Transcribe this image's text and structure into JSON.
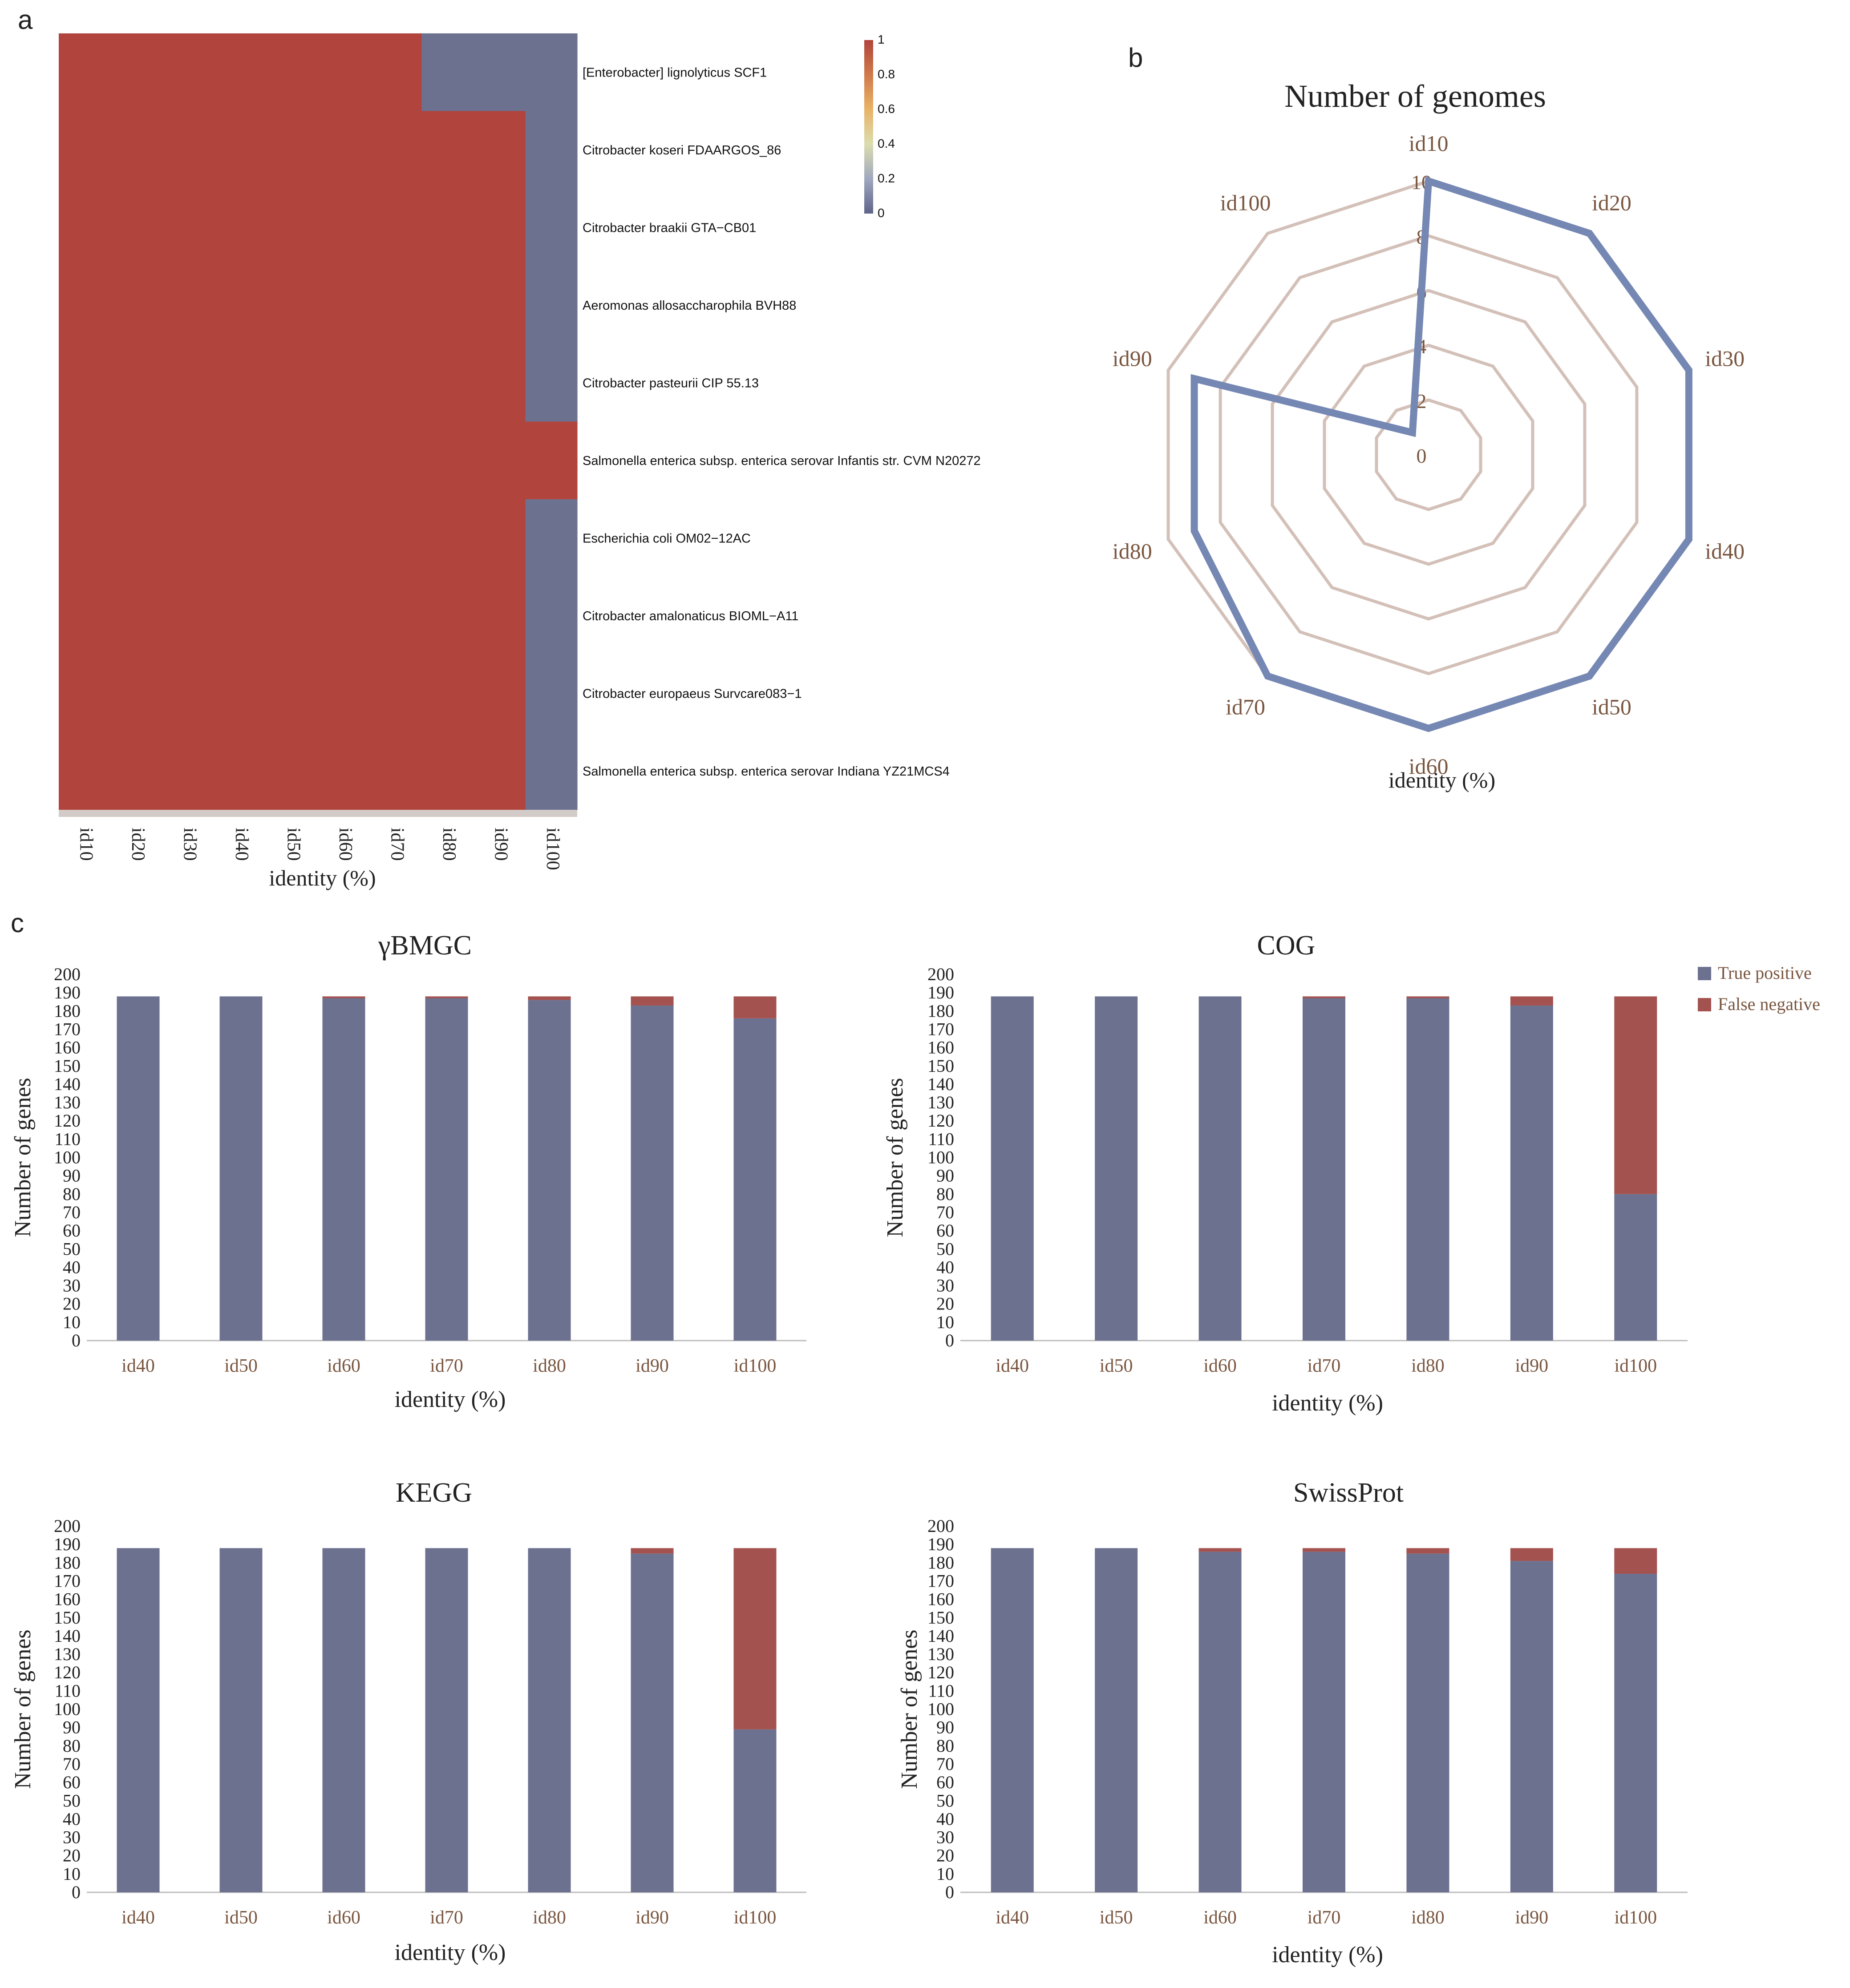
{
  "panel_labels": {
    "a": "a",
    "b": "b",
    "c": "c"
  },
  "colors": {
    "positive": "#6D7190",
    "negative": "#A3524F",
    "heat_high": "#B1443C",
    "heat_low": "#6D7190",
    "radar_grid": "#D3C0B8",
    "radar_line": "#7587B3",
    "radar_text": "#7A5640",
    "axis_text": "#7A5640",
    "sep": "#D3CBC8"
  },
  "chart_data": [
    {
      "type": "heatmap",
      "panel": "a",
      "xlabel": "identity (%)",
      "x": [
        "id10",
        "id20",
        "id30",
        "id40",
        "id50",
        "id60",
        "id70",
        "id80",
        "id90",
        "id100"
      ],
      "rows": [
        "[Enterobacter] lignolyticus SCF1",
        "Citrobacter koseri FDAARGOS_86",
        "Citrobacter braakii GTA−CB01",
        "Aeromonas allosaccharophila BVH88",
        "Citrobacter pasteurii CIP 55.13",
        "Salmonella enterica subsp. enterica serovar Infantis str. CVM N20272",
        "Escherichia coli OM02−12AC",
        "Citrobacter amalonaticus BIOML−A11",
        "Citrobacter europaeus Survcare083−1",
        "Salmonella enterica subsp. enterica serovar Indiana YZ21MCS4"
      ],
      "values": [
        [
          1,
          1,
          1,
          1,
          1,
          1,
          1,
          0,
          0,
          0
        ],
        [
          1,
          1,
          1,
          1,
          1,
          1,
          1,
          1,
          1,
          0
        ],
        [
          1,
          1,
          1,
          1,
          1,
          1,
          1,
          1,
          1,
          0
        ],
        [
          1,
          1,
          1,
          1,
          1,
          1,
          1,
          1,
          1,
          0
        ],
        [
          1,
          1,
          1,
          1,
          1,
          1,
          1,
          1,
          1,
          0
        ],
        [
          1,
          1,
          1,
          1,
          1,
          1,
          1,
          1,
          1,
          1
        ],
        [
          1,
          1,
          1,
          1,
          1,
          1,
          1,
          1,
          1,
          0
        ],
        [
          1,
          1,
          1,
          1,
          1,
          1,
          1,
          1,
          1,
          0
        ],
        [
          1,
          1,
          1,
          1,
          1,
          1,
          1,
          1,
          1,
          0
        ],
        [
          1,
          1,
          1,
          1,
          1,
          1,
          1,
          1,
          1,
          0
        ]
      ],
      "legend": {
        "ticks": [
          "1",
          "0.8",
          "0.6",
          "0.4",
          "0.2",
          "0"
        ],
        "range": [
          0,
          1
        ]
      }
    },
    {
      "type": "radar",
      "panel": "b",
      "title": "Number of genomes",
      "xlabel": "identity (%)",
      "axes": [
        "id10",
        "id20",
        "id30",
        "id40",
        "id50",
        "id60",
        "id70",
        "id80",
        "id90",
        "id100"
      ],
      "values": [
        10,
        10,
        10,
        10,
        10,
        10,
        10,
        9,
        9,
        1
      ],
      "rlim": [
        0,
        10
      ],
      "rticks": [
        "0",
        "2",
        "4",
        "6",
        "8",
        "10"
      ]
    },
    {
      "type": "bar",
      "stacked": true,
      "panel": "c",
      "title": "γBMGC",
      "xlabel": "identity (%)",
      "ylabel": "Number of genes",
      "categories": [
        "id40",
        "id50",
        "id60",
        "id70",
        "id80",
        "id90",
        "id100"
      ],
      "series": [
        {
          "name": "True positive",
          "values": [
            188,
            188,
            187,
            187,
            186,
            183,
            176
          ]
        },
        {
          "name": "False negative",
          "values": [
            0,
            0,
            1,
            1,
            2,
            5,
            12
          ]
        }
      ],
      "ylim": [
        0,
        200
      ],
      "yticks": [
        "0",
        "10",
        "20",
        "30",
        "40",
        "50",
        "60",
        "70",
        "80",
        "90",
        "100",
        "110",
        "120",
        "130",
        "140",
        "150",
        "160",
        "170",
        "180",
        "190",
        "200"
      ]
    },
    {
      "type": "bar",
      "stacked": true,
      "panel": "c",
      "title": "COG",
      "xlabel": "identity (%)",
      "ylabel": "Number of genes",
      "categories": [
        "id40",
        "id50",
        "id60",
        "id70",
        "id80",
        "id90",
        "id100"
      ],
      "series": [
        {
          "name": "True positive",
          "values": [
            188,
            188,
            188,
            187,
            187,
            183,
            80
          ]
        },
        {
          "name": "False negative",
          "values": [
            0,
            0,
            0,
            1,
            1,
            5,
            108
          ]
        }
      ],
      "ylim": [
        0,
        200
      ],
      "yticks": [
        "0",
        "10",
        "20",
        "30",
        "40",
        "50",
        "60",
        "70",
        "80",
        "90",
        "100",
        "110",
        "120",
        "130",
        "140",
        "150",
        "160",
        "170",
        "180",
        "190",
        "200"
      ],
      "legend": [
        "True positive",
        "False negative"
      ]
    },
    {
      "type": "bar",
      "stacked": true,
      "panel": "c",
      "title": "KEGG",
      "xlabel": "identity (%)",
      "ylabel": "Number of genes",
      "categories": [
        "id40",
        "id50",
        "id60",
        "id70",
        "id80",
        "id90",
        "id100"
      ],
      "series": [
        {
          "name": "True positive",
          "values": [
            188,
            188,
            188,
            188,
            188,
            185,
            89
          ]
        },
        {
          "name": "False negative",
          "values": [
            0,
            0,
            0,
            0,
            0,
            3,
            99
          ]
        }
      ],
      "ylim": [
        0,
        200
      ],
      "yticks": [
        "0",
        "10",
        "20",
        "30",
        "40",
        "50",
        "60",
        "70",
        "80",
        "90",
        "100",
        "110",
        "120",
        "130",
        "140",
        "150",
        "160",
        "170",
        "180",
        "190",
        "200"
      ]
    },
    {
      "type": "bar",
      "stacked": true,
      "panel": "c",
      "title": "SwissProt",
      "xlabel": "identity (%)",
      "ylabel": "Number of genes",
      "categories": [
        "id40",
        "id50",
        "id60",
        "id70",
        "id80",
        "id90",
        "id100"
      ],
      "series": [
        {
          "name": "True positive",
          "values": [
            188,
            188,
            186,
            186,
            185,
            181,
            174
          ]
        },
        {
          "name": "False negative",
          "values": [
            0,
            0,
            2,
            2,
            3,
            7,
            14
          ]
        }
      ],
      "ylim": [
        0,
        200
      ],
      "yticks": [
        "0",
        "10",
        "20",
        "30",
        "40",
        "50",
        "60",
        "70",
        "80",
        "90",
        "100",
        "110",
        "120",
        "130",
        "140",
        "150",
        "160",
        "170",
        "180",
        "190",
        "200"
      ]
    }
  ]
}
